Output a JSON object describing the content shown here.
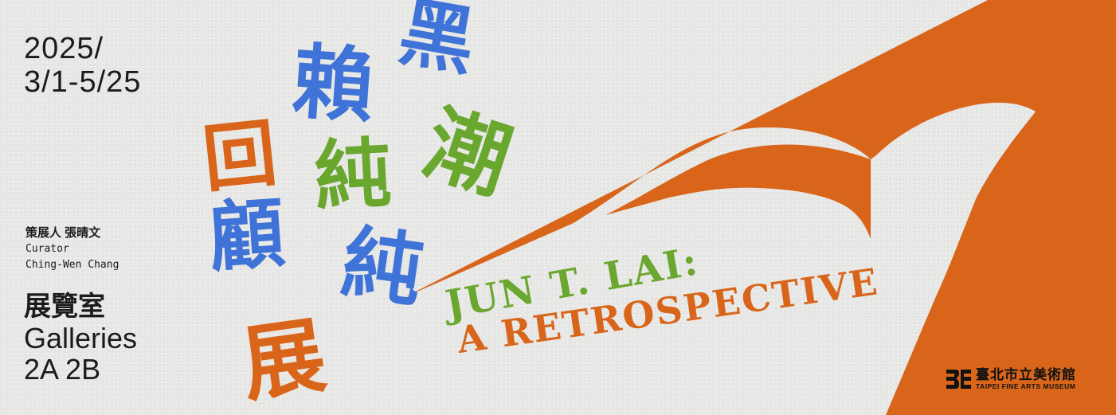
{
  "exhibition": {
    "date_line1": "2025/",
    "date_line2": "3/1-5/25",
    "curator_cn": "策展人 張晴文",
    "curator_en_label": "Curator",
    "curator_en_name": "Ching-Wen Chang",
    "gallery_cn": "展覽室",
    "gallery_en": "Galleries",
    "gallery_rooms": "2A 2B"
  },
  "title_cn": {
    "col1": [
      "回",
      "顧",
      "展"
    ],
    "col2": [
      "賴",
      "純",
      "純"
    ],
    "col3": [
      "黑",
      "潮"
    ]
  },
  "title_en": {
    "line1": "JUN T. LAI:",
    "line2": "A RETROSPECTIVE"
  },
  "museum": {
    "name_cn": "臺北市立美術館",
    "name_en": "TAIPEI FINE ARTS MUSEUM",
    "logo_icon": "tfam-logo-icon"
  },
  "colors": {
    "background": "#e8e8e6",
    "orange": "#d9651b",
    "blue": "#3f73d7",
    "green": "#6aa72f",
    "text": "#1b1b1b"
  }
}
